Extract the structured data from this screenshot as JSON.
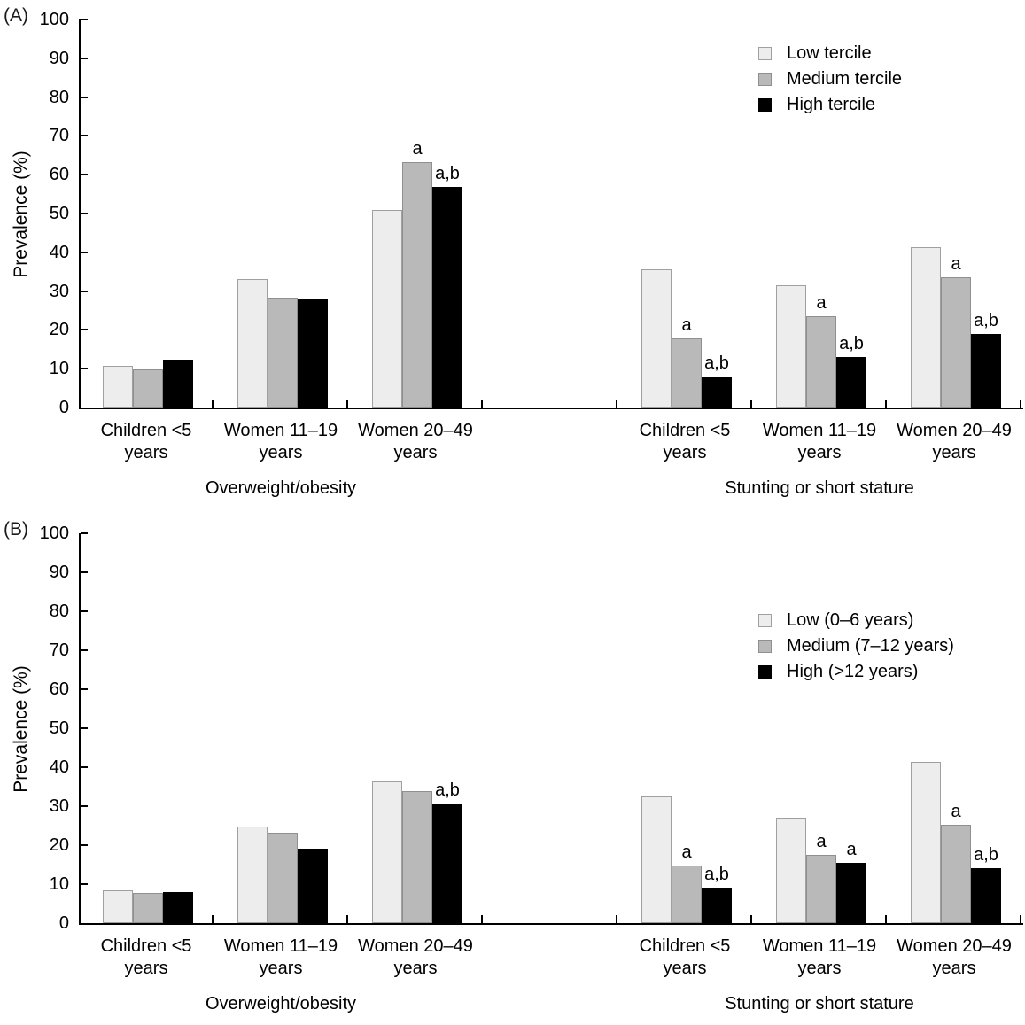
{
  "chart_data": [
    {
      "type": "bar",
      "panel_label": "(A)",
      "ylabel": "Prevalence (%)",
      "ylim": [
        0,
        100
      ],
      "ytick_step": 10,
      "grid": false,
      "legend_position": "upper-right",
      "legend": [
        {
          "name": "Low tercile",
          "color": "#ededed",
          "border": "#a0a0a0"
        },
        {
          "name": "Medium tercile",
          "color": "#b9b9b9",
          "border": "#8f8f8f"
        },
        {
          "name": "High tercile",
          "color": "#000000",
          "border": "#000000"
        }
      ],
      "sections": [
        {
          "label": "Overweight/obesity",
          "groups": [
            {
              "category": "Children <5 years",
              "category_lines": [
                "Children <5",
                "years"
              ],
              "values": [
                10.7,
                9.8,
                12.3
              ],
              "annotations": [
                "",
                "",
                ""
              ]
            },
            {
              "category": "Women 11–19 years",
              "category_lines": [
                "Women 11–19",
                "years"
              ],
              "values": [
                33.0,
                28.3,
                27.8
              ],
              "annotations": [
                "",
                "",
                ""
              ]
            },
            {
              "category": "Women 20–49 years",
              "category_lines": [
                "Women 20–49",
                "years"
              ],
              "values": [
                51.0,
                63.3,
                56.8
              ],
              "annotations": [
                "",
                "a",
                "a,b"
              ]
            }
          ]
        },
        {
          "label": "Stunting or short stature",
          "groups": [
            {
              "category": "Children <5 years",
              "category_lines": [
                "Children <5",
                "years"
              ],
              "values": [
                35.7,
                17.8,
                8.0
              ],
              "annotations": [
                "",
                "a",
                "a,b"
              ]
            },
            {
              "category": "Women 11–19 years",
              "category_lines": [
                "Women 11–19",
                "years"
              ],
              "values": [
                31.6,
                23.6,
                13.0
              ],
              "annotations": [
                "",
                "a",
                "a,b"
              ]
            },
            {
              "category": "Women 20–49 years",
              "category_lines": [
                "Women 20–49",
                "years"
              ],
              "values": [
                41.3,
                33.6,
                19.0
              ],
              "annotations": [
                "",
                "a",
                "a,b"
              ]
            }
          ]
        }
      ]
    },
    {
      "type": "bar",
      "panel_label": "(B)",
      "ylabel": "Prevalence (%)",
      "ylim": [
        0,
        100
      ],
      "ytick_step": 10,
      "grid": false,
      "legend_position": "upper-right",
      "legend": [
        {
          "name": "Low (0–6 years)",
          "color": "#ededed",
          "border": "#a0a0a0"
        },
        {
          "name": "Medium (7–12 years)",
          "color": "#b9b9b9",
          "border": "#8f8f8f"
        },
        {
          "name": "High (>12 years)",
          "color": "#000000",
          "border": "#000000"
        }
      ],
      "sections": [
        {
          "label": "Overweight/obesity",
          "groups": [
            {
              "category": "Children <5 years",
              "category_lines": [
                "Children <5",
                "years"
              ],
              "values": [
                8.5,
                7.8,
                8.0
              ],
              "annotations": [
                "",
                "",
                ""
              ]
            },
            {
              "category": "Women 11–19 years",
              "category_lines": [
                "Women 11–19",
                "years"
              ],
              "values": [
                24.8,
                23.2,
                19.2
              ],
              "annotations": [
                "",
                "",
                ""
              ]
            },
            {
              "category": "Women 20–49 years",
              "category_lines": [
                "Women 20–49",
                "years"
              ],
              "values": [
                36.3,
                33.8,
                30.7
              ],
              "annotations": [
                "",
                "",
                "a,b"
              ]
            }
          ]
        },
        {
          "label": "Stunting or short stature",
          "groups": [
            {
              "category": "Children <5 years",
              "category_lines": [
                "Children <5",
                "years"
              ],
              "values": [
                32.5,
                14.8,
                9.0
              ],
              "annotations": [
                "",
                "a",
                "a,b"
              ]
            },
            {
              "category": "Women 11–19 years",
              "category_lines": [
                "Women 11–19",
                "years"
              ],
              "values": [
                27.0,
                17.5,
                15.5
              ],
              "annotations": [
                "",
                "a",
                "a"
              ]
            },
            {
              "category": "Women 20–49 years",
              "category_lines": [
                "Women 20–49",
                "years"
              ],
              "values": [
                41.3,
                25.3,
                14.0
              ],
              "annotations": [
                "",
                "a",
                "a,b"
              ]
            }
          ]
        }
      ]
    }
  ]
}
